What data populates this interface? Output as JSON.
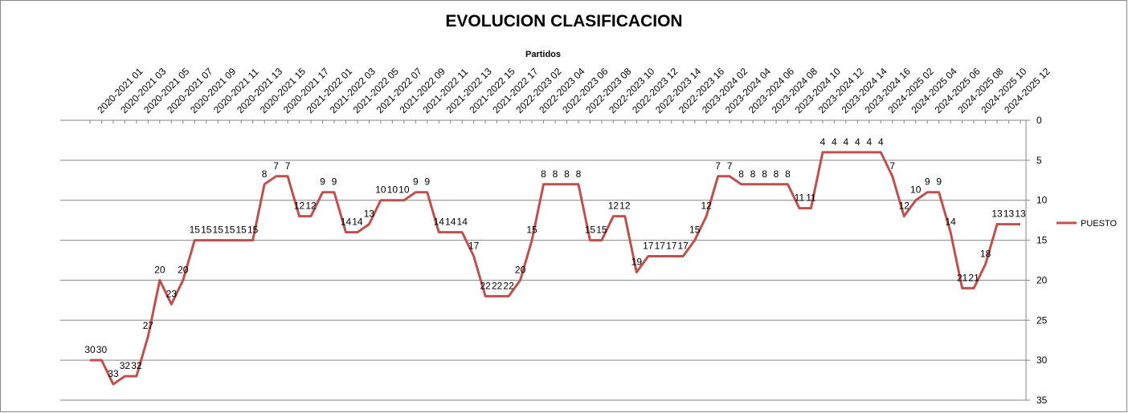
{
  "chart_data": {
    "type": "line",
    "title": "EVOLUCION CLASIFICACION",
    "x_label": "Partidos",
    "categories": [
      "2020-2021 01",
      null,
      "2020-2021 03",
      null,
      "2020-2021 05",
      null,
      "2020-2021 07",
      null,
      "2020-2021 09",
      null,
      "2020-2021 11",
      null,
      "2020-2021 13",
      null,
      "2020-2021 15",
      null,
      "2020-2021 17",
      null,
      "2021-2022 01",
      null,
      "2021-2022 03",
      null,
      "2021-2022 05",
      null,
      "2021-2022 07",
      null,
      "2021-2022 09",
      null,
      "2021-2022 11",
      null,
      "2021-2022 13",
      null,
      "2021-2022 15",
      null,
      "2021-2022 17",
      null,
      "2022-2023 02",
      null,
      "2022-2023 04",
      null,
      "2022-2023 06",
      null,
      "2022-2023 08",
      null,
      "2022-2023 10",
      null,
      "2022-2023 12",
      null,
      "2022-2023 14",
      null,
      "2022-2023 16",
      null,
      "2023-2024 02",
      null,
      "2023-2024 04",
      null,
      "2023-2024 06",
      null,
      "2023-2024 08",
      null,
      "2023-2024 10",
      null,
      "2023-2024 12",
      null,
      "2023-2024 14",
      null,
      "2023-2024 16",
      null,
      "2024-2025 02",
      null,
      "2024-2025 04",
      null,
      "2024-2025 06",
      null,
      "2024-2025 08",
      null,
      "2024-2025 10",
      null,
      "2024-2025 12",
      null,
      null
    ],
    "series": [
      {
        "name": "PUESTO",
        "color": "#c0504d",
        "values": [
          30,
          30,
          33,
          32,
          32,
          27,
          20,
          23,
          20,
          15,
          15,
          15,
          15,
          15,
          15,
          8,
          7,
          7,
          12,
          12,
          9,
          9,
          14,
          14,
          13,
          10,
          10,
          10,
          9,
          9,
          14,
          14,
          14,
          17,
          22,
          22,
          22,
          20,
          15,
          8,
          8,
          8,
          8,
          15,
          15,
          12,
          12,
          19,
          17,
          17,
          17,
          17,
          15,
          12,
          7,
          7,
          8,
          8,
          8,
          8,
          8,
          11,
          11,
          4,
          4,
          4,
          4,
          4,
          4,
          7,
          12,
          10,
          9,
          9,
          14,
          21,
          21,
          18,
          13,
          13,
          13
        ]
      }
    ],
    "ylim": [
      0,
      35
    ],
    "yticks": [
      0,
      5,
      10,
      15,
      20,
      25,
      30,
      35
    ],
    "y_inverted": true,
    "y_axis_side": "right",
    "x_axis_side": "top",
    "grid": true,
    "legend": "right"
  }
}
